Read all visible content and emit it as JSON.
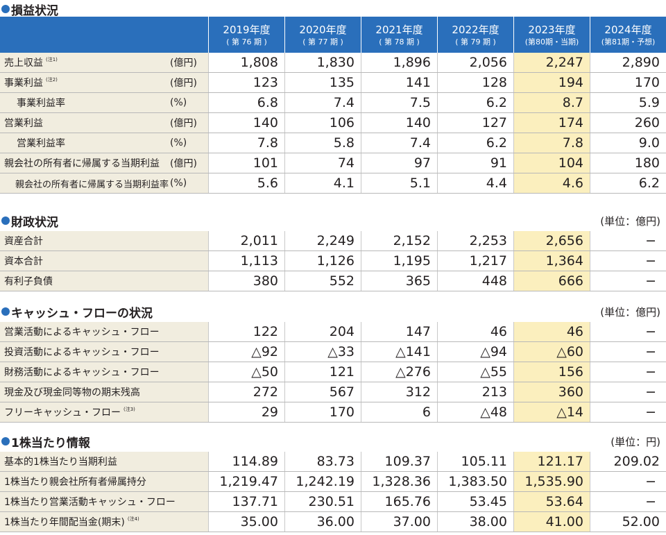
{
  "colors": {
    "header_blue": "#2a6fbb",
    "label_bg": "#f1eddf",
    "highlight": "#fbefbe"
  },
  "columns": [
    {
      "year": "2019年度",
      "sub": "( 第 76 期 )"
    },
    {
      "year": "2020年度",
      "sub": "( 第 77 期 )"
    },
    {
      "year": "2021年度",
      "sub": "( 第 78 期 )"
    },
    {
      "year": "2022年度",
      "sub": "( 第 79 期 )"
    },
    {
      "year": "2023年度",
      "sub": "(第80期・当期)"
    },
    {
      "year": "2024年度",
      "sub": "(第81期・予想)"
    }
  ],
  "sections": {
    "pl": {
      "title": "損益状況",
      "rows": [
        {
          "label": "売上収益",
          "note": "(注1)",
          "unit": "(億円)",
          "indent": 0,
          "values": [
            "1,808",
            "1,830",
            "1,896",
            "2,056",
            "2,247",
            "2,890"
          ]
        },
        {
          "label": "事業利益",
          "note": "(注2)",
          "unit": "(億円)",
          "indent": 0,
          "values": [
            "123",
            "135",
            "141",
            "128",
            "194",
            "170"
          ]
        },
        {
          "label": "事業利益率",
          "note": "",
          "unit": "(%)",
          "indent": 1,
          "values": [
            "6.8",
            "7.4",
            "7.5",
            "6.2",
            "8.7",
            "5.9"
          ]
        },
        {
          "label": "営業利益",
          "note": "",
          "unit": "(億円)",
          "indent": 0,
          "values": [
            "140",
            "106",
            "140",
            "127",
            "174",
            "260"
          ]
        },
        {
          "label": "営業利益率",
          "note": "",
          "unit": "(%)",
          "indent": 1,
          "values": [
            "7.8",
            "5.8",
            "7.4",
            "6.2",
            "7.8",
            "9.0"
          ]
        },
        {
          "label": "親会社の所有者に帰属する当期利益",
          "note": "",
          "unit": "(億円)",
          "indent": 0,
          "values": [
            "101",
            "74",
            "97",
            "91",
            "104",
            "180"
          ]
        },
        {
          "label": "親会社の所有者に帰属する当期利益率",
          "note": "",
          "unit": "(%)",
          "indent": 2,
          "values": [
            "5.6",
            "4.1",
            "5.1",
            "4.4",
            "4.6",
            "6.2"
          ]
        }
      ]
    },
    "bs": {
      "title": "財政状況",
      "unit": "(単位：億円)",
      "rows": [
        {
          "label": "資産合計",
          "note": "",
          "values": [
            "2,011",
            "2,249",
            "2,152",
            "2,253",
            "2,656",
            "−"
          ]
        },
        {
          "label": "資本合計",
          "note": "",
          "values": [
            "1,113",
            "1,126",
            "1,195",
            "1,217",
            "1,364",
            "−"
          ]
        },
        {
          "label": "有利子負債",
          "note": "",
          "values": [
            "380",
            "552",
            "365",
            "448",
            "666",
            "−"
          ]
        }
      ]
    },
    "cf": {
      "title": "キャッシュ・フローの状況",
      "unit": "(単位：億円)",
      "rows": [
        {
          "label": "営業活動によるキャッシュ・フロー",
          "note": "",
          "values": [
            "122",
            "204",
            "147",
            "46",
            "46",
            "−"
          ]
        },
        {
          "label": "投資活動によるキャッシュ・フロー",
          "note": "",
          "values": [
            "△92",
            "△33",
            "△141",
            "△94",
            "△60",
            "−"
          ]
        },
        {
          "label": "財務活動によるキャッシュ・フロー",
          "note": "",
          "values": [
            "△50",
            "121",
            "△276",
            "△55",
            "156",
            "−"
          ]
        },
        {
          "label": "現金及び現金同等物の期末残高",
          "note": "",
          "values": [
            "272",
            "567",
            "312",
            "213",
            "360",
            "−"
          ]
        },
        {
          "label": "フリーキャッシュ・フロー",
          "note": "(注3)",
          "values": [
            "29",
            "170",
            "6",
            "△48",
            "△14",
            "−"
          ]
        }
      ]
    },
    "ps": {
      "title": "1株当たり情報",
      "unit": "(単位：円)",
      "rows": [
        {
          "label": "基本的1株当たり当期利益",
          "note": "",
          "values": [
            "114.89",
            "83.73",
            "109.37",
            "105.11",
            "121.17",
            "209.02"
          ]
        },
        {
          "label": "1株当たり親会社所有者帰属持分",
          "note": "",
          "values": [
            "1,219.47",
            "1,242.19",
            "1,328.36",
            "1,383.50",
            "1,535.90",
            "−"
          ]
        },
        {
          "label": "1株当たり営業活動キャッシュ・フロー",
          "note": "",
          "values": [
            "137.71",
            "230.51",
            "165.76",
            "53.45",
            "53.64",
            "−"
          ]
        },
        {
          "label": "1株当たり年間配当金(期末)",
          "note": "(注4)",
          "values": [
            "35.00",
            "36.00",
            "37.00",
            "38.00",
            "41.00",
            "52.00"
          ]
        }
      ]
    }
  }
}
